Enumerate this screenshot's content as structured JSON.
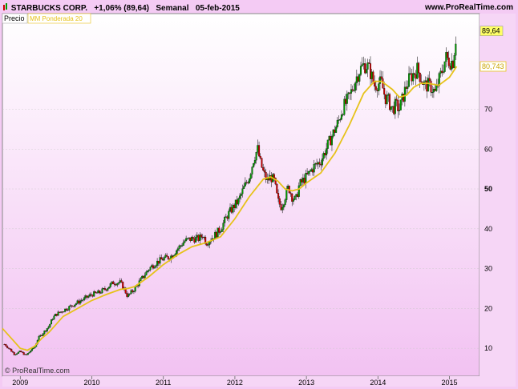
{
  "header": {
    "title": "STARBUCKS CORP.",
    "change": "+1,06% (89,64)",
    "period": "Semanal",
    "date": "05-feb-2015",
    "site": "www.ProRealTime.com"
  },
  "legend": {
    "price_label": "Precio",
    "ma_label": "MM Ponderada 20"
  },
  "copyright": "© ProRealTime.com",
  "colors": {
    "bull": "#009900",
    "bear": "#cc0000",
    "ma": "#e6c21a",
    "grid": "#c8c8c8"
  },
  "chart_data": {
    "type": "candlestick",
    "x_ticks": [
      "2009",
      "2010",
      "2011",
      "2012",
      "2013",
      "2014",
      "2015"
    ],
    "y_ticks": [
      10,
      20,
      30,
      40,
      50,
      60,
      70
    ],
    "ylim": [
      3,
      94
    ],
    "xlim": [
      2008.75,
      2015.42
    ],
    "last_price_label": "89,64",
    "ma_value_label": "80,743",
    "price_path": [
      [
        2008.78,
        11
      ],
      [
        2008.85,
        9.8
      ],
      [
        2008.92,
        8.5
      ],
      [
        2009.0,
        9.2
      ],
      [
        2009.08,
        8.2
      ],
      [
        2009.15,
        9.5
      ],
      [
        2009.2,
        10.3
      ],
      [
        2009.25,
        12.5
      ],
      [
        2009.3,
        13.5
      ],
      [
        2009.35,
        14.5
      ],
      [
        2009.4,
        15.5
      ],
      [
        2009.45,
        17.5
      ],
      [
        2009.5,
        18.5
      ],
      [
        2009.6,
        19.5
      ],
      [
        2009.7,
        20.5
      ],
      [
        2009.8,
        21.5
      ],
      [
        2009.9,
        22.5
      ],
      [
        2010.0,
        23.5
      ],
      [
        2010.1,
        24
      ],
      [
        2010.2,
        25
      ],
      [
        2010.3,
        26.5
      ],
      [
        2010.4,
        26.5
      ],
      [
        2010.45,
        25
      ],
      [
        2010.5,
        23
      ],
      [
        2010.6,
        25
      ],
      [
        2010.7,
        27.5
      ],
      [
        2010.8,
        30
      ],
      [
        2010.9,
        31.5
      ],
      [
        2011.0,
        32.5
      ],
      [
        2011.1,
        33
      ],
      [
        2011.2,
        35
      ],
      [
        2011.3,
        37
      ],
      [
        2011.4,
        37.5
      ],
      [
        2011.5,
        37.5
      ],
      [
        2011.55,
        38.5
      ],
      [
        2011.6,
        36.5
      ],
      [
        2011.7,
        38
      ],
      [
        2011.8,
        40
      ],
      [
        2011.9,
        43.5
      ],
      [
        2012.0,
        46
      ],
      [
        2012.05,
        47
      ],
      [
        2012.12,
        50
      ],
      [
        2012.2,
        53
      ],
      [
        2012.27,
        58
      ],
      [
        2012.32,
        60
      ],
      [
        2012.35,
        57
      ],
      [
        2012.4,
        54
      ],
      [
        2012.45,
        52
      ],
      [
        2012.5,
        53
      ],
      [
        2012.55,
        52
      ],
      [
        2012.6,
        47
      ],
      [
        2012.65,
        45.5
      ],
      [
        2012.7,
        48
      ],
      [
        2012.75,
        50.5
      ],
      [
        2012.8,
        48
      ],
      [
        2012.85,
        47
      ],
      [
        2012.9,
        51
      ],
      [
        2013.0,
        53
      ],
      [
        2013.1,
        55.5
      ],
      [
        2013.2,
        57
      ],
      [
        2013.3,
        61
      ],
      [
        2013.4,
        65
      ],
      [
        2013.45,
        67
      ],
      [
        2013.5,
        70
      ],
      [
        2013.6,
        73
      ],
      [
        2013.7,
        78
      ],
      [
        2013.75,
        80
      ],
      [
        2013.8,
        81
      ],
      [
        2013.85,
        81
      ],
      [
        2013.9,
        79
      ],
      [
        2013.95,
        76
      ],
      [
        2014.0,
        76.5
      ],
      [
        2014.05,
        76.5
      ],
      [
        2014.1,
        73
      ],
      [
        2014.15,
        72
      ],
      [
        2014.2,
        70
      ],
      [
        2014.25,
        71
      ],
      [
        2014.3,
        70
      ],
      [
        2014.35,
        73
      ],
      [
        2014.4,
        76
      ],
      [
        2014.45,
        78
      ],
      [
        2014.5,
        79
      ],
      [
        2014.55,
        80
      ],
      [
        2014.6,
        78
      ],
      [
        2014.65,
        76
      ],
      [
        2014.7,
        76
      ],
      [
        2014.75,
        75.5
      ],
      [
        2014.8,
        74
      ],
      [
        2014.85,
        77
      ],
      [
        2014.9,
        80
      ],
      [
        2014.95,
        83
      ],
      [
        2015.0,
        82
      ],
      [
        2015.05,
        82
      ],
      [
        2015.1,
        89.64
      ]
    ],
    "ma_path": [
      [
        2008.75,
        15
      ],
      [
        2008.9,
        12
      ],
      [
        2009.0,
        10
      ],
      [
        2009.1,
        9.5
      ],
      [
        2009.2,
        10.5
      ],
      [
        2009.3,
        12.5
      ],
      [
        2009.4,
        14
      ],
      [
        2009.5,
        16
      ],
      [
        2009.6,
        18
      ],
      [
        2009.7,
        19
      ],
      [
        2009.8,
        20
      ],
      [
        2009.9,
        21
      ],
      [
        2010.0,
        22
      ],
      [
        2010.2,
        23.5
      ],
      [
        2010.4,
        24.8
      ],
      [
        2010.5,
        25
      ],
      [
        2010.6,
        25.5
      ],
      [
        2010.8,
        28
      ],
      [
        2011.0,
        31
      ],
      [
        2011.2,
        33.5
      ],
      [
        2011.4,
        35.5
      ],
      [
        2011.6,
        36.5
      ],
      [
        2011.8,
        38
      ],
      [
        2012.0,
        42.5
      ],
      [
        2012.2,
        48
      ],
      [
        2012.4,
        52.5
      ],
      [
        2012.5,
        53
      ],
      [
        2012.6,
        52
      ],
      [
        2012.7,
        50
      ],
      [
        2012.8,
        49.5
      ],
      [
        2012.9,
        50
      ],
      [
        2013.0,
        51.5
      ],
      [
        2013.2,
        54
      ],
      [
        2013.4,
        59
      ],
      [
        2013.6,
        66
      ],
      [
        2013.8,
        74
      ],
      [
        2013.95,
        77
      ],
      [
        2014.05,
        77
      ],
      [
        2014.2,
        75
      ],
      [
        2014.3,
        73
      ],
      [
        2014.4,
        73.5
      ],
      [
        2014.5,
        75.5
      ],
      [
        2014.6,
        76.5
      ],
      [
        2014.7,
        76.5
      ],
      [
        2014.85,
        76
      ],
      [
        2015.0,
        78
      ],
      [
        2015.1,
        80.74
      ]
    ]
  }
}
